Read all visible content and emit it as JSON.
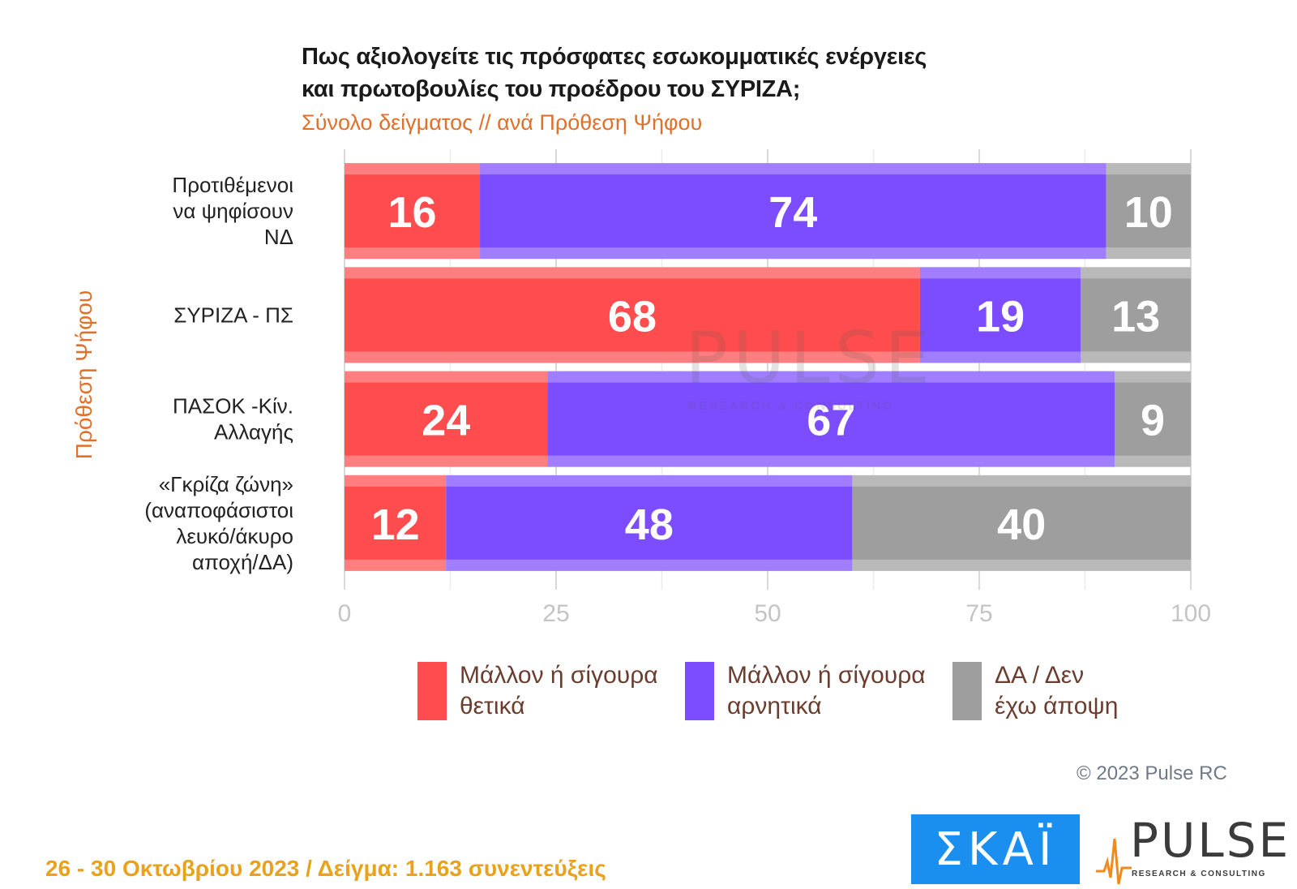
{
  "title_line1": "Πως αξιολογείτε τις πρόσφατες εσωκομματικές ενέργειες",
  "title_line2": "και πρωτοβουλίες του προέδρου του ΣΥΡΙΖΑ;",
  "subtitle": "Σύνολο δείγματος // ανά Πρόθεση Ψήφου",
  "copyright": "© 2023 Pulse RC",
  "footer_note": "26 - 30  Οκτωβρίου  2023  /  Δείγμα:  1.163 συνεντεύξεις",
  "logos": {
    "skai": "ΣΚΑΪ",
    "pulse": "PULSE",
    "pulse_tagline": "RESEARCH & CONSULTING"
  },
  "chart_data": {
    "type": "bar",
    "orientation": "horizontal",
    "stacked": true,
    "title": "Πως αξιολογείτε τις πρόσφατες εσωκομματικές ενέργειες και πρωτοβουλίες του προέδρου του ΣΥΡΙΖΑ;",
    "subtitle": "Σύνολο δείγματος // ανά Πρόθεση Ψήφου",
    "ylabel": "Πρόθεση Ψήφου",
    "xlabel": "",
    "xlim": [
      0,
      100
    ],
    "xticks": [
      0,
      25,
      50,
      75,
      100
    ],
    "grid": true,
    "legend_position": "bottom",
    "categories": [
      [
        "Προτιθέμενοι",
        "να ψηφίσουν",
        "ΝΔ"
      ],
      [
        "ΣΥΡΙΖΑ - ΠΣ"
      ],
      [
        "ΠΑΣΟΚ -Κίν.",
        "Αλλαγής"
      ],
      [
        "«Γκρίζα ζώνη»",
        "(αναποφάσιστοι",
        "λευκό/άκυρο",
        "αποχή/ΔΑ)"
      ]
    ],
    "series": [
      {
        "name": "Μάλλον ή σίγουρα θετικά",
        "legend_lines": [
          "Μάλλον ή σίγουρα",
          "θετικά"
        ],
        "color": "#ff4d4f",
        "values": [
          16,
          68,
          24,
          12
        ]
      },
      {
        "name": "Μάλλον ή σίγουρα αρνητικά",
        "legend_lines": [
          "Μάλλον ή σίγουρα",
          "αρνητικά"
        ],
        "color": "#7c4dff",
        "values": [
          74,
          19,
          67,
          48
        ]
      },
      {
        "name": "ΔΑ / Δεν έχω άποψη",
        "legend_lines": [
          "ΔΑ / Δεν",
          "έχω άποψη"
        ],
        "color": "#9e9e9e",
        "values": [
          10,
          13,
          9,
          40
        ]
      }
    ]
  }
}
